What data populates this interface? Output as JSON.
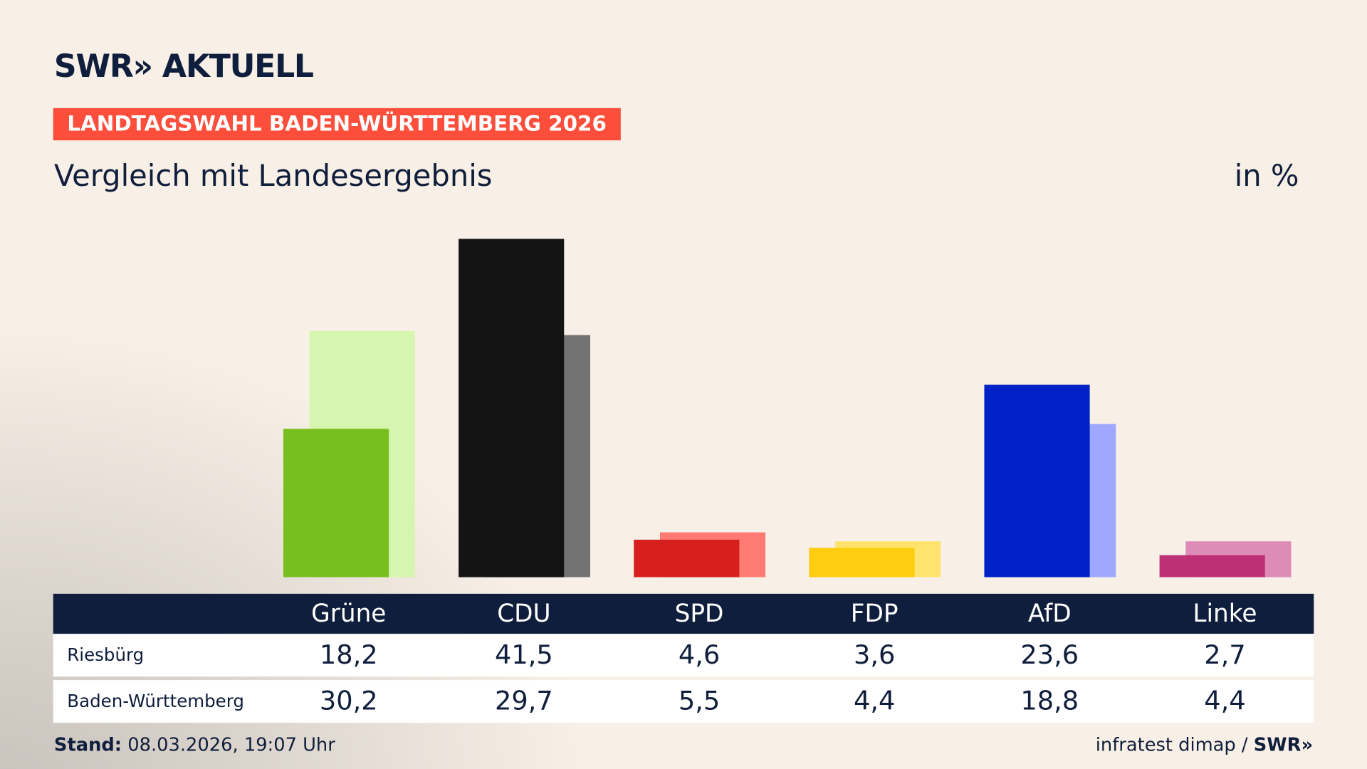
{
  "logo": "SWR» AKTUELL",
  "badge": "LANDTAGSWAHL BADEN-WÜRTTEMBERG 2026",
  "subtitle": "Vergleich mit Landesergebnis",
  "unit": "in %",
  "footer": {
    "stand_label": "Stand:",
    "stand_value": " 08.03.2026, 19:07 Uhr",
    "source": "infratest dimap / ",
    "source_logo": "SWR»"
  },
  "chart_data": {
    "type": "bar",
    "categories": [
      "Grüne",
      "CDU",
      "SPD",
      "FDP",
      "AfD",
      "Linke"
    ],
    "series": [
      {
        "name": "Riesbürg",
        "values": [
          18.2,
          41.5,
          4.6,
          3.6,
          23.6,
          2.7
        ],
        "colors": [
          "#78be1e",
          "#141414",
          "#d71f1d",
          "#ffcc0f",
          "#0021c8",
          "#be3075"
        ]
      },
      {
        "name": "Baden-Württemberg",
        "values": [
          30.2,
          29.7,
          5.5,
          4.4,
          18.8,
          4.4
        ],
        "colors": [
          "#d6f5ae",
          "#737373",
          "#ff7b73",
          "#ffe36e",
          "#9ea8ff",
          "#dd8cb8"
        ]
      }
    ],
    "table": {
      "rows": [
        {
          "label": "Riesbürg",
          "values": [
            "18,2",
            "41,5",
            "4,6",
            "3,6",
            "23,6",
            "2,7"
          ]
        },
        {
          "label": "Baden-Württemberg",
          "values": [
            "30,2",
            "29,7",
            "5,5",
            "4,4",
            "18,8",
            "4,4"
          ]
        }
      ]
    }
  }
}
